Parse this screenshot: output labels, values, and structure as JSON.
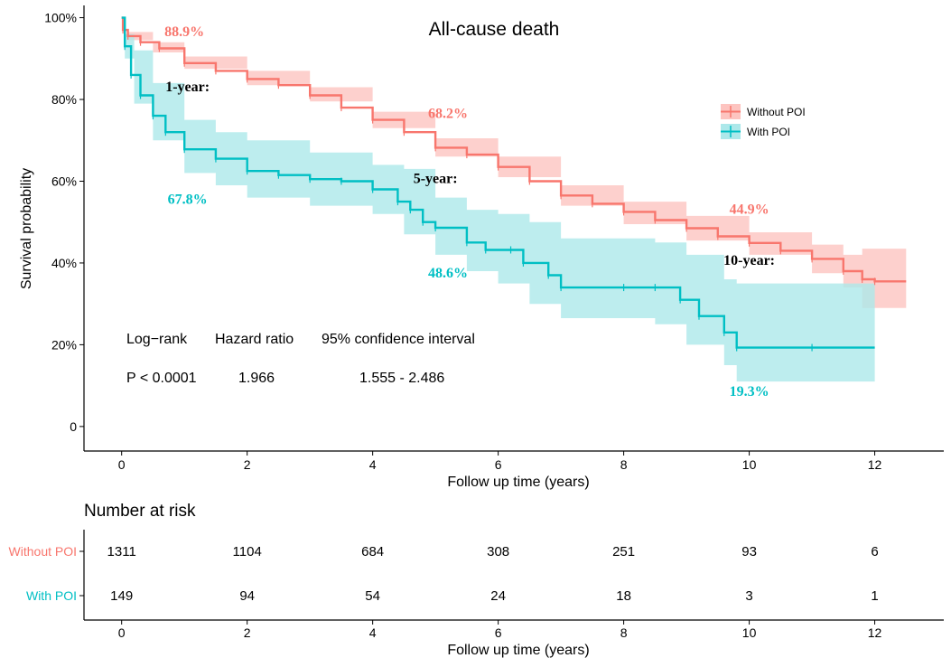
{
  "chart_data": {
    "type": "line",
    "title": "All-cause death",
    "xlabel": "Follow up time (years)",
    "ylabel": "Survival probability",
    "xlim": [
      -0.6,
      13.1
    ],
    "ylim": [
      -0.06,
      1.03
    ],
    "x_ticks": [
      0,
      2,
      4,
      6,
      8,
      10,
      12
    ],
    "x_tick_labels": [
      "0",
      "2",
      "4",
      "6",
      "8",
      "10",
      "12"
    ],
    "y_ticks": [
      0,
      0.2,
      0.4,
      0.6,
      0.8,
      1.0
    ],
    "y_tick_labels": [
      "0",
      "20%",
      "40%",
      "60%",
      "80%",
      "100%"
    ],
    "grid": false,
    "legend_position": "top-right",
    "legend": [
      "Without POI",
      "With POI"
    ],
    "series": [
      {
        "name": "Without POI",
        "color": "#F8766D",
        "band_color": "#FDC4C0",
        "points": [
          [
            0,
            1.0
          ],
          [
            0.02,
            0.97
          ],
          [
            0.1,
            0.955
          ],
          [
            0.3,
            0.94
          ],
          [
            0.6,
            0.925
          ],
          [
            1.0,
            0.889
          ],
          [
            1.5,
            0.87
          ],
          [
            2.0,
            0.85
          ],
          [
            2.5,
            0.835
          ],
          [
            3.0,
            0.81
          ],
          [
            3.5,
            0.78
          ],
          [
            4.0,
            0.75
          ],
          [
            4.5,
            0.72
          ],
          [
            5.0,
            0.682
          ],
          [
            5.5,
            0.665
          ],
          [
            6.0,
            0.635
          ],
          [
            6.5,
            0.6
          ],
          [
            7.0,
            0.565
          ],
          [
            7.5,
            0.545
          ],
          [
            8.0,
            0.525
          ],
          [
            8.5,
            0.505
          ],
          [
            9.0,
            0.485
          ],
          [
            9.5,
            0.465
          ],
          [
            10.0,
            0.449
          ],
          [
            10.5,
            0.43
          ],
          [
            11.0,
            0.41
          ],
          [
            11.5,
            0.38
          ],
          [
            11.8,
            0.36
          ],
          [
            12.0,
            0.355
          ],
          [
            12.5,
            0.355
          ]
        ],
        "ci_lower": [
          [
            0,
            1.0
          ],
          [
            0.1,
            0.945
          ],
          [
            0.5,
            0.915
          ],
          [
            1.0,
            0.875
          ],
          [
            2.0,
            0.835
          ],
          [
            3.0,
            0.795
          ],
          [
            4.0,
            0.73
          ],
          [
            5.0,
            0.66
          ],
          [
            6.0,
            0.61
          ],
          [
            7.0,
            0.54
          ],
          [
            8.0,
            0.495
          ],
          [
            9.0,
            0.455
          ],
          [
            10.0,
            0.42
          ],
          [
            11.0,
            0.375
          ],
          [
            11.5,
            0.34
          ],
          [
            11.8,
            0.29
          ],
          [
            12.5,
            0.29
          ]
        ],
        "ci_upper": [
          [
            0,
            1.0
          ],
          [
            0.1,
            0.965
          ],
          [
            0.5,
            0.94
          ],
          [
            1.0,
            0.905
          ],
          [
            2.0,
            0.87
          ],
          [
            3.0,
            0.83
          ],
          [
            4.0,
            0.77
          ],
          [
            5.0,
            0.705
          ],
          [
            6.0,
            0.66
          ],
          [
            7.0,
            0.59
          ],
          [
            8.0,
            0.55
          ],
          [
            9.0,
            0.515
          ],
          [
            10.0,
            0.475
          ],
          [
            11.0,
            0.445
          ],
          [
            11.5,
            0.42
          ],
          [
            11.8,
            0.435
          ],
          [
            12.5,
            0.435
          ]
        ]
      },
      {
        "name": "With POI",
        "color": "#00BFC4",
        "band_color": "#ACE8EA",
        "points": [
          [
            0,
            1.0
          ],
          [
            0.05,
            0.93
          ],
          [
            0.15,
            0.86
          ],
          [
            0.3,
            0.81
          ],
          [
            0.5,
            0.76
          ],
          [
            0.7,
            0.72
          ],
          [
            1.0,
            0.678
          ],
          [
            1.5,
            0.655
          ],
          [
            2.0,
            0.625
          ],
          [
            2.5,
            0.615
          ],
          [
            3.0,
            0.605
          ],
          [
            3.5,
            0.6
          ],
          [
            4.0,
            0.58
          ],
          [
            4.4,
            0.55
          ],
          [
            4.6,
            0.53
          ],
          [
            4.8,
            0.5
          ],
          [
            5.0,
            0.486
          ],
          [
            5.5,
            0.45
          ],
          [
            5.8,
            0.432
          ],
          [
            6.2,
            0.432
          ],
          [
            6.4,
            0.4
          ],
          [
            6.8,
            0.37
          ],
          [
            7.0,
            0.34
          ],
          [
            8.0,
            0.34
          ],
          [
            8.5,
            0.34
          ],
          [
            8.9,
            0.31
          ],
          [
            9.2,
            0.27
          ],
          [
            9.6,
            0.23
          ],
          [
            9.8,
            0.193
          ],
          [
            11.0,
            0.193
          ],
          [
            12.0,
            0.193
          ]
        ],
        "ci_lower": [
          [
            0,
            1.0
          ],
          [
            0.05,
            0.9
          ],
          [
            0.2,
            0.79
          ],
          [
            0.5,
            0.7
          ],
          [
            1.0,
            0.62
          ],
          [
            1.5,
            0.59
          ],
          [
            2.0,
            0.56
          ],
          [
            3.0,
            0.54
          ],
          [
            4.0,
            0.52
          ],
          [
            4.5,
            0.47
          ],
          [
            5.0,
            0.42
          ],
          [
            5.5,
            0.38
          ],
          [
            6.0,
            0.35
          ],
          [
            6.5,
            0.3
          ],
          [
            7.0,
            0.265
          ],
          [
            8.0,
            0.265
          ],
          [
            8.5,
            0.25
          ],
          [
            9.0,
            0.2
          ],
          [
            9.6,
            0.15
          ],
          [
            9.8,
            0.11
          ],
          [
            12.0,
            0.105
          ]
        ],
        "ci_upper": [
          [
            0,
            1.0
          ],
          [
            0.05,
            0.96
          ],
          [
            0.2,
            0.92
          ],
          [
            0.5,
            0.84
          ],
          [
            1.0,
            0.75
          ],
          [
            1.5,
            0.72
          ],
          [
            2.0,
            0.7
          ],
          [
            3.0,
            0.67
          ],
          [
            4.0,
            0.64
          ],
          [
            4.5,
            0.63
          ],
          [
            5.0,
            0.56
          ],
          [
            5.5,
            0.53
          ],
          [
            6.0,
            0.52
          ],
          [
            6.5,
            0.5
          ],
          [
            7.0,
            0.46
          ],
          [
            8.0,
            0.46
          ],
          [
            8.5,
            0.45
          ],
          [
            9.0,
            0.42
          ],
          [
            9.6,
            0.36
          ],
          [
            9.8,
            0.35
          ],
          [
            12.0,
            0.35
          ]
        ]
      }
    ],
    "annotations": [
      {
        "text": "88.9%",
        "x": 1.0,
        "y": 0.955,
        "color": "#F8766D"
      },
      {
        "text": "68.2%",
        "x": 5.2,
        "y": 0.755,
        "color": "#F8766D"
      },
      {
        "text": "44.9%",
        "x": 10.0,
        "y": 0.52,
        "color": "#F8766D"
      },
      {
        "text": "1-year:",
        "x": 1.05,
        "y": 0.82,
        "color": "#000000"
      },
      {
        "text": "5-year:",
        "x": 5.0,
        "y": 0.595,
        "color": "#000000"
      },
      {
        "text": "10-year:",
        "x": 10.0,
        "y": 0.395,
        "color": "#000000"
      },
      {
        "text": "67.8%",
        "x": 1.05,
        "y": 0.545,
        "color": "#00BFC4"
      },
      {
        "text": "48.6%",
        "x": 5.2,
        "y": 0.365,
        "color": "#00BFC4"
      },
      {
        "text": "19.3%",
        "x": 10.0,
        "y": 0.075,
        "color": "#00BFC4"
      }
    ],
    "stats": {
      "headers": [
        "Log−rank",
        "Hazard ratio",
        "95% confidence interval"
      ],
      "values": [
        "P < 0.0001",
        "1.966",
        "1.555 - 2.486"
      ]
    }
  },
  "risk_table": {
    "title": "Number at risk",
    "xlabel": "Follow up time (years)",
    "times": [
      0,
      2,
      4,
      6,
      8,
      10,
      12
    ],
    "tick_labels": [
      "0",
      "2",
      "4",
      "6",
      "8",
      "10",
      "12"
    ],
    "rows": [
      {
        "name": "Without POI",
        "color": "#F8766D",
        "values": [
          "1311",
          "1104",
          "684",
          "308",
          "251",
          "93",
          "6"
        ]
      },
      {
        "name": "With POI",
        "color": "#00BFC4",
        "values": [
          "149",
          "94",
          "54",
          "24",
          "18",
          "3",
          "1"
        ]
      }
    ]
  }
}
